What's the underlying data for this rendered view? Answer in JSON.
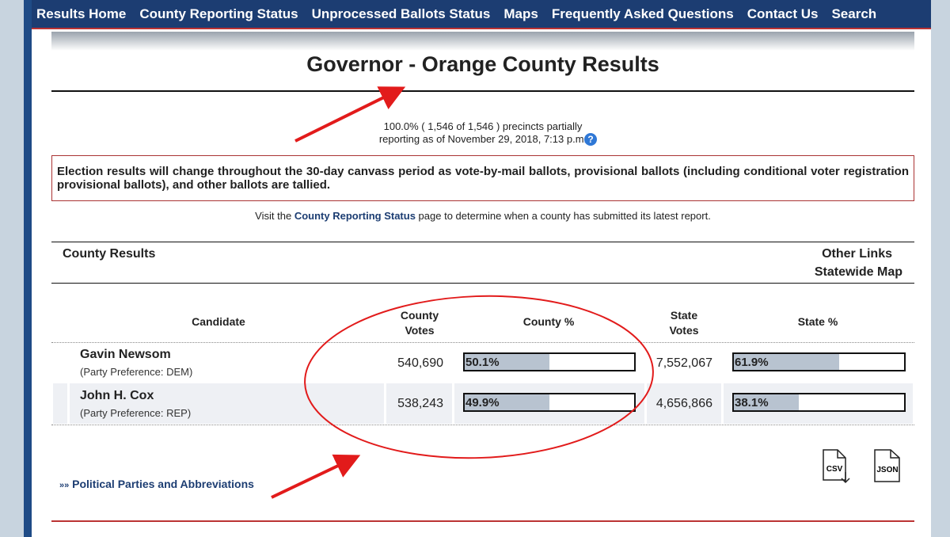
{
  "nav": [
    "Results Home",
    "County Reporting Status",
    "Unprocessed Ballots Status",
    "Maps",
    "Frequently Asked Questions",
    "Contact Us",
    "Search"
  ],
  "title": "Governor - Orange County Results",
  "reporting": {
    "line1": "100.0% ( 1,546 of 1,546 ) precincts partially",
    "line2": "reporting as of November 29, 2018, 7:13 p.m.",
    "help": "?"
  },
  "notice": "Election results will change throughout the 30-day canvass period as vote-by-mail ballots, provisional ballots (including conditional voter registration provisional ballots), and other ballots are tallied.",
  "visit": {
    "before": "Visit the",
    "link": "County Reporting Status",
    "after": "page to determine when a county has submitted its latest report."
  },
  "section": {
    "left": "County Results",
    "right_title": "Other Links",
    "right_link": "Statewide Map"
  },
  "table": {
    "headers": [
      "Candidate",
      "County Votes",
      "County %",
      "State Votes",
      "State %"
    ],
    "rows": [
      {
        "name": "Gavin Newsom",
        "party": "(Party Preference: DEM)",
        "county_votes": "540,690",
        "county_pct": {
          "value": 50.1,
          "label": "50.1%"
        },
        "state_votes": "7,552,067",
        "state_pct": {
          "value": 61.9,
          "label": "61.9%"
        }
      },
      {
        "name": "John H. Cox",
        "party": "(Party Preference: REP)",
        "county_votes": "538,243",
        "county_pct": {
          "value": 49.9,
          "label": "49.9%"
        },
        "state_votes": "4,656,866",
        "state_pct": {
          "value": 38.1,
          "label": "38.1%"
        }
      }
    ]
  },
  "footer_link": {
    "prefix": "»»",
    "text": "Political Parties and Abbreviations"
  },
  "downloads": [
    "CSV",
    "JSON"
  ]
}
